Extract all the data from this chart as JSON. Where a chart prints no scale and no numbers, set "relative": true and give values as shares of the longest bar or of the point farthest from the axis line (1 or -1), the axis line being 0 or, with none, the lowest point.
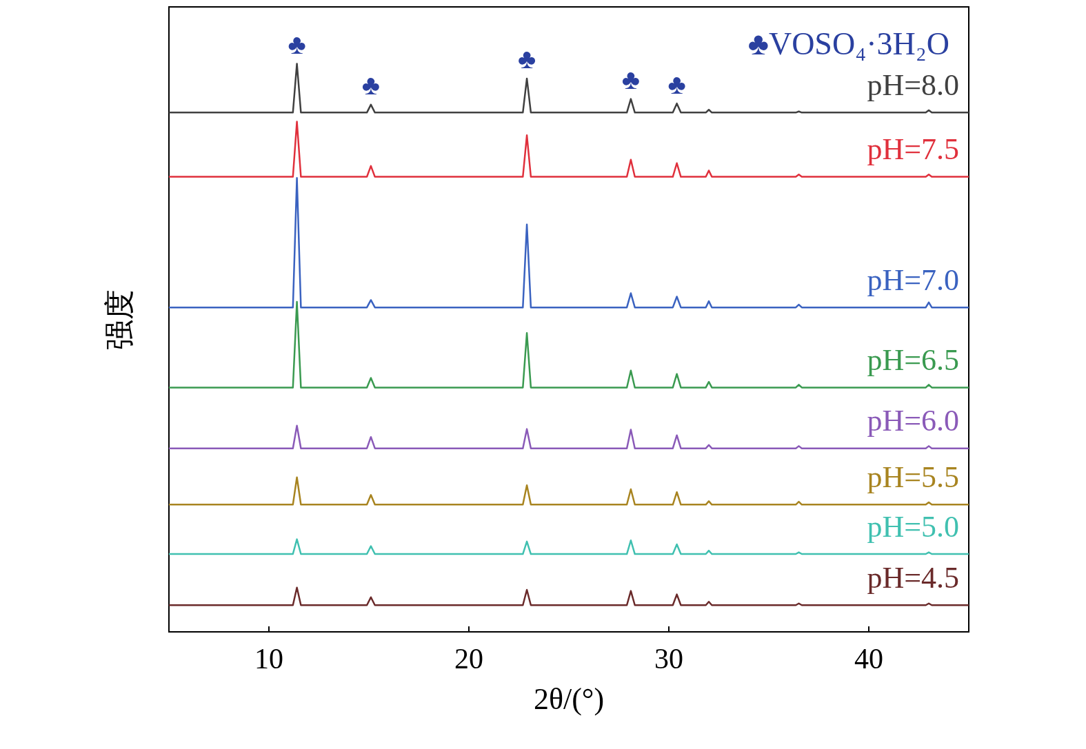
{
  "chart_data": {
    "type": "line",
    "relative": true,
    "xlabel": "2θ/(°)",
    "ylabel": "强度",
    "xlim": [
      5,
      45
    ],
    "xticks": [
      10,
      20,
      30,
      40
    ],
    "grid": false,
    "legend": false,
    "marker": "none",
    "line_style": "solid",
    "x": [
      5,
      11.2,
      11.4,
      11.6,
      14.9,
      15.1,
      15.3,
      22.7,
      22.9,
      23.1,
      27.9,
      28.1,
      28.3,
      30.2,
      30.4,
      30.6,
      31.85,
      32.0,
      32.15,
      36.35,
      36.5,
      36.65,
      42.85,
      43.0,
      43.15,
      45
    ],
    "series": [
      {
        "name": "pH=8.0",
        "color": "#404040",
        "values": [
          0.914,
          0.914,
          1.0,
          0.914,
          0.914,
          0.928,
          0.914,
          0.914,
          0.974,
          0.914,
          0.914,
          0.938,
          0.914,
          0.914,
          0.93,
          0.914,
          0.914,
          0.919,
          0.914,
          0.914,
          0.916,
          0.914,
          0.914,
          0.918,
          0.914,
          0.914
        ]
      },
      {
        "name": "pH=7.5",
        "color": "#e0303c",
        "values": [
          0.801,
          0.801,
          0.898,
          0.801,
          0.801,
          0.82,
          0.801,
          0.801,
          0.874,
          0.801,
          0.801,
          0.831,
          0.801,
          0.801,
          0.825,
          0.801,
          0.801,
          0.812,
          0.801,
          0.801,
          0.805,
          0.801,
          0.801,
          0.805,
          0.801,
          0.801
        ]
      },
      {
        "name": "pH=7.0",
        "color": "#3a62c0",
        "values": [
          0.571,
          0.571,
          0.799,
          0.571,
          0.571,
          0.584,
          0.571,
          0.571,
          0.717,
          0.571,
          0.571,
          0.596,
          0.571,
          0.571,
          0.59,
          0.571,
          0.571,
          0.582,
          0.571,
          0.571,
          0.576,
          0.571,
          0.571,
          0.58,
          0.571,
          0.571
        ]
      },
      {
        "name": "pH=6.5",
        "color": "#3a9a50",
        "values": [
          0.43,
          0.43,
          0.581,
          0.43,
          0.43,
          0.447,
          0.43,
          0.43,
          0.526,
          0.43,
          0.43,
          0.46,
          0.43,
          0.43,
          0.454,
          0.43,
          0.43,
          0.44,
          0.43,
          0.43,
          0.435,
          0.43,
          0.43,
          0.435,
          0.43,
          0.43
        ]
      },
      {
        "name": "pH=6.0",
        "color": "#8a5ab8",
        "values": [
          0.323,
          0.323,
          0.363,
          0.323,
          0.323,
          0.343,
          0.323,
          0.323,
          0.357,
          0.323,
          0.323,
          0.356,
          0.323,
          0.323,
          0.346,
          0.323,
          0.323,
          0.329,
          0.323,
          0.323,
          0.327,
          0.323,
          0.323,
          0.327,
          0.323,
          0.323
        ]
      },
      {
        "name": "pH=5.5",
        "color": "#a88420",
        "values": [
          0.224,
          0.224,
          0.272,
          0.224,
          0.224,
          0.241,
          0.224,
          0.224,
          0.258,
          0.224,
          0.224,
          0.251,
          0.224,
          0.224,
          0.246,
          0.224,
          0.224,
          0.23,
          0.224,
          0.224,
          0.229,
          0.224,
          0.224,
          0.228,
          0.224,
          0.224
        ]
      },
      {
        "name": "pH=5.0",
        "color": "#40c0b0",
        "values": [
          0.137,
          0.137,
          0.163,
          0.137,
          0.137,
          0.151,
          0.137,
          0.137,
          0.159,
          0.137,
          0.137,
          0.161,
          0.137,
          0.137,
          0.154,
          0.137,
          0.137,
          0.143,
          0.137,
          0.137,
          0.14,
          0.137,
          0.137,
          0.14,
          0.137,
          0.137
        ]
      },
      {
        "name": "pH=4.5",
        "color": "#6a2a2a",
        "values": [
          0.047,
          0.047,
          0.078,
          0.047,
          0.047,
          0.061,
          0.047,
          0.047,
          0.074,
          0.047,
          0.047,
          0.072,
          0.047,
          0.047,
          0.066,
          0.047,
          0.047,
          0.053,
          0.047,
          0.047,
          0.05,
          0.047,
          0.047,
          0.05,
          0.047,
          0.047
        ]
      }
    ],
    "annotations": [
      "♣VOSO₄·3H₂O",
      {
        "text": "♣",
        "x": 11.4,
        "y": 1.0
      },
      {
        "text": "♣",
        "x": 15.1,
        "y": 0.928
      },
      {
        "text": "♣",
        "x": 22.9,
        "y": 0.974
      },
      {
        "text": "♣",
        "x": 28.1,
        "y": 0.938
      },
      {
        "text": "♣",
        "x": 30.4,
        "y": 0.93
      }
    ]
  }
}
